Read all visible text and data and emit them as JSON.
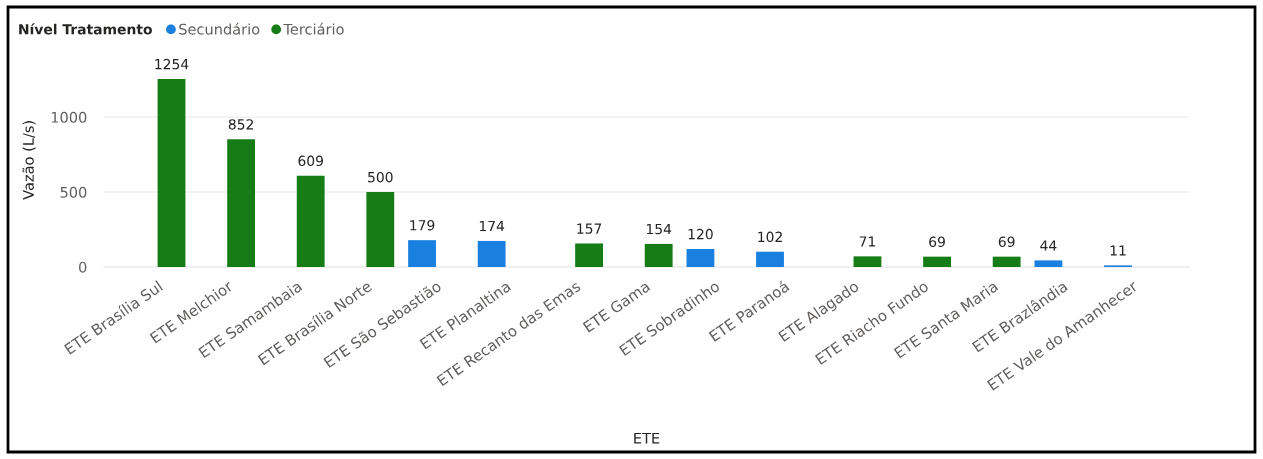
{
  "chart_data": {
    "type": "bar",
    "xlabel": "ETE",
    "ylabel": "Vazão (L/s)",
    "legend_title": "Nível Tratamento",
    "categories": [
      "ETE Brasília Sul",
      "ETE Melchior",
      "ETE Samambaia",
      "ETE Brasília Norte",
      "ETE São Sebastião",
      "ETE Planaltina",
      "ETE Recanto das Emas",
      "ETE Gama",
      "ETE Sobradinho",
      "ETE Paranoá",
      "ETE Alagado",
      "ETE Riacho Fundo",
      "ETE Santa Maria",
      "ETE Brazlândia",
      "ETE Vale do Amanhecer"
    ],
    "series": [
      {
        "name": "Secundário",
        "color": "#1a80e0",
        "values": [
          null,
          null,
          null,
          null,
          179,
          174,
          null,
          null,
          120,
          102,
          null,
          null,
          null,
          44,
          11
        ]
      },
      {
        "name": "Terciário",
        "color": "#167c16",
        "values": [
          1254,
          852,
          609,
          500,
          null,
          null,
          157,
          154,
          null,
          null,
          71,
          69,
          69,
          null,
          null
        ]
      }
    ],
    "ylim": [
      0,
      1254
    ],
    "yticks": [
      0,
      500,
      1000
    ],
    "grid": "y",
    "legend": "top left",
    "data_labels": true
  }
}
